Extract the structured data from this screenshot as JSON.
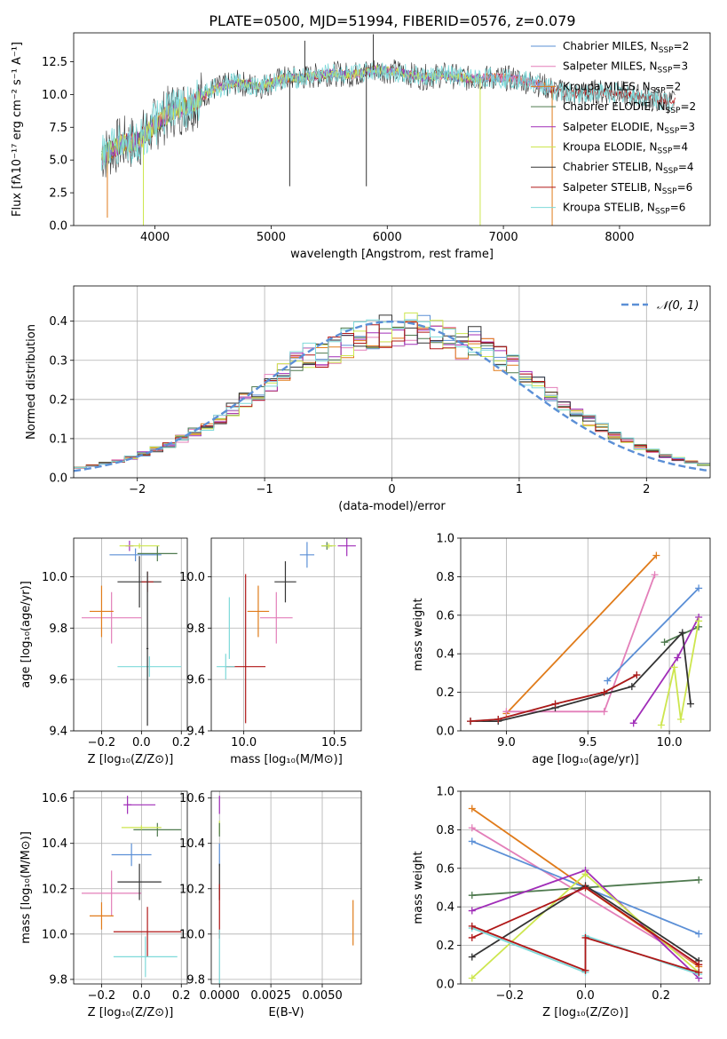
{
  "colors": {
    "Chabrier MILES": "#5b8fd6",
    "Salpeter MILES": "#e37fb9",
    "Kroupa MILES": "#e07b1a",
    "Chabrier ELODIE": "#4f7a4f",
    "Salpeter ELODIE": "#a02db8",
    "Kroupa ELODIE": "#cde64e",
    "Chabrier STELIB": "#333333",
    "Salpeter STELIB": "#b01818",
    "Kroupa STELIB": "#7ed9d9",
    "normal": "#5b8fd6"
  },
  "chart_data": [
    {
      "id": "spectrum",
      "type": "line",
      "title": "PLATE=0500, MJD=51994, FIBERID=0576, z=0.079",
      "xlabel": "wavelength [Angstrom, rest frame]",
      "ylabel": "Flux [fλ10⁻¹⁷ erg cm⁻² s⁻¹ A⁻¹]",
      "xlim": [
        3300,
        8780
      ],
      "ylim": [
        0,
        14.7
      ],
      "xticks": [
        "4000",
        "5000",
        "6000",
        "7000",
        "8000"
      ],
      "yticks": [
        "0.0",
        "2.5",
        "5.0",
        "7.5",
        "10.0",
        "12.5"
      ],
      "legend_position": "top-right",
      "legend": [
        {
          "model": "Chabrier MILES",
          "prefix": "Chabrier MILES, N",
          "nssp": "2"
        },
        {
          "model": "Salpeter MILES",
          "prefix": "Salpeter MILES, N",
          "nssp": "3"
        },
        {
          "model": "Kroupa MILES",
          "prefix": "Kroupa MILES, N",
          "nssp": "2"
        },
        {
          "model": "Chabrier ELODIE",
          "prefix": "Chabrier ELODIE, N",
          "nssp": "2"
        },
        {
          "model": "Salpeter ELODIE",
          "prefix": "Salpeter ELODIE, N",
          "nssp": "3"
        },
        {
          "model": "Kroupa ELODIE",
          "prefix": "Kroupa ELODIE, N",
          "nssp": "4"
        },
        {
          "model": "Chabrier STELIB",
          "prefix": "Chabrier STELIB, N",
          "nssp": "4"
        },
        {
          "model": "Salpeter STELIB",
          "prefix": "Salpeter STELIB, N",
          "nssp": "6"
        },
        {
          "model": "Kroupa STELIB",
          "prefix": "Kroupa STELIB, N",
          "nssp": "6"
        }
      ],
      "legend_subscript": "SSP",
      "legend_suffix": "=",
      "continuum": {
        "wavelength": [
          3550,
          3700,
          3850,
          4000,
          4150,
          4300,
          4500,
          4700,
          4900,
          5100,
          5300,
          5500,
          5700,
          5900,
          6100,
          6300,
          6500,
          6700,
          6900,
          7100,
          7300,
          7450,
          7600,
          7800,
          8000,
          8200,
          8400,
          8500
        ],
        "flux": [
          5.4,
          6.2,
          6.4,
          7.7,
          8.8,
          9.2,
          10.4,
          10.9,
          10.6,
          11.2,
          11.3,
          11.6,
          11.5,
          11.9,
          11.7,
          11.3,
          11.5,
          11.2,
          11.3,
          11.2,
          10.8,
          10.3,
          10.0,
          10.2,
          10.1,
          9.8,
          9.5,
          9.4
        ]
      },
      "spikes": [
        {
          "model": "Chabrier STELIB",
          "wavelength": 5160,
          "flux": 3.0
        },
        {
          "model": "Chabrier STELIB",
          "wavelength": 5290,
          "flux": 14.1
        },
        {
          "model": "Chabrier STELIB",
          "wavelength": 5820,
          "flux": 3.0
        },
        {
          "model": "Chabrier STELIB",
          "wavelength": 5880,
          "flux": 14.6
        },
        {
          "model": "Kroupa ELODIE",
          "wavelength": 6800,
          "flux": 0.0
        },
        {
          "model": "Kroupa MILES",
          "wavelength": 7420,
          "flux": 0.0
        },
        {
          "model": "Kroupa MILES",
          "wavelength": 3590,
          "flux": 0.6
        },
        {
          "model": "Kroupa ELODIE",
          "wavelength": 3900,
          "flux": 0.0
        }
      ]
    },
    {
      "id": "residuals",
      "type": "step",
      "xlabel": "(data-model)/error",
      "ylabel": "Normed distribution",
      "xlim": [
        -2.5,
        2.5
      ],
      "ylim": [
        0,
        0.49
      ],
      "xticks": [
        "−2",
        "−1",
        "0",
        "1",
        "2"
      ],
      "xtick_values": [
        -2,
        -1,
        0,
        1,
        2
      ],
      "yticks": [
        "0.0",
        "0.1",
        "0.2",
        "0.3",
        "0.4"
      ],
      "ytick_values": [
        0,
        0.1,
        0.2,
        0.3,
        0.4
      ],
      "bin_width": 0.1,
      "legend": "𝒩(0, 1)",
      "legend_position": "top-right",
      "series_models": [
        "Chabrier MILES",
        "Salpeter MILES",
        "Kroupa MILES",
        "Chabrier ELODIE",
        "Salpeter ELODIE",
        "Kroupa ELODIE",
        "Chabrier STELIB",
        "Salpeter STELIB",
        "Kroupa STELIB"
      ]
    },
    {
      "id": "age-vs-z",
      "type": "errorbar",
      "xlabel": "Z [log₁₀(Z/Z⊙)]",
      "ylabel": "age  [log₁₀(age/yr)]",
      "xlim": [
        -0.34,
        0.23
      ],
      "ylim": [
        9.4,
        10.15
      ],
      "xticks": [
        "−0.2",
        "0.0",
        "0.2"
      ],
      "xtick_values": [
        -0.2,
        0.0,
        0.2
      ],
      "yticks": [
        "9.4",
        "9.6",
        "9.8",
        "10.0"
      ],
      "ytick_values": [
        9.4,
        9.6,
        9.8,
        10.0
      ],
      "points": [
        {
          "model": "Chabrier MILES",
          "x": -0.03,
          "xerr": 0.13,
          "y": 10.085,
          "yerr": 0.025
        },
        {
          "model": "Salpeter MILES",
          "x": -0.15,
          "xerr": 0.15,
          "y": 9.84,
          "yerr": 0.1
        },
        {
          "model": "Kroupa MILES",
          "x": -0.2,
          "xerr": 0.06,
          "y": 9.865,
          "yerr": 0.1
        },
        {
          "model": "Chabrier ELODIE",
          "x": 0.08,
          "xerr": 0.1,
          "y": 10.09,
          "yerr": 0.03
        },
        {
          "model": "Salpeter ELODIE",
          "x": -0.06,
          "xerr": 0.02,
          "y": 10.12,
          "yerr": 0.02
        },
        {
          "model": "Kroupa ELODIE",
          "x": -0.01,
          "xerr": 0.1,
          "y": 10.12,
          "yerr": 0.01
        },
        {
          "model": "Chabrier STELIB",
          "x": -0.01,
          "xerr": 0.11,
          "y": 9.98,
          "yerr": 0.1
        },
        {
          "model": "Salpeter STELIB",
          "x": 0.03,
          "xerr": 0.03,
          "y": 9.98,
          "yerr": 0.04
        },
        {
          "model": "Kroupa STELIB",
          "x": 0.04,
          "xerr": 0.16,
          "y": 9.65,
          "yerr": 0.04
        },
        {
          "model": "Chabrier STELIB",
          "x": 0.03,
          "xerr": 0.005,
          "y": 9.72,
          "yerr": 0.3
        }
      ]
    },
    {
      "id": "age-vs-mass",
      "type": "errorbar",
      "xlabel": "mass [log₁₀(M/M⊙)]",
      "ylabel": "",
      "xlim": [
        9.82,
        10.65
      ],
      "ylim": [
        9.4,
        10.15
      ],
      "xticks": [
        "10.0",
        "10.5"
      ],
      "xtick_values": [
        10.0,
        10.5
      ],
      "yticks": [
        "9.4",
        "9.6",
        "9.8",
        "10.0"
      ],
      "ytick_values": [
        9.4,
        9.6,
        9.8,
        10.0
      ],
      "points": [
        {
          "model": "Chabrier MILES",
          "x": 10.35,
          "xerr": 0.04,
          "y": 10.085,
          "yerr": 0.05
        },
        {
          "model": "Salpeter MILES",
          "x": 10.18,
          "xerr": 0.09,
          "y": 9.84,
          "yerr": 0.1
        },
        {
          "model": "Kroupa MILES",
          "x": 10.08,
          "xerr": 0.06,
          "y": 9.865,
          "yerr": 0.1
        },
        {
          "model": "Chabrier ELODIE",
          "x": 10.46,
          "xerr": 0.03,
          "y": 10.12,
          "yerr": 0.015
        },
        {
          "model": "Salpeter ELODIE",
          "x": 10.57,
          "xerr": 0.05,
          "y": 10.12,
          "yerr": 0.04
        },
        {
          "model": "Kroupa ELODIE",
          "x": 10.47,
          "xerr": 0.04,
          "y": 10.12,
          "yerr": 0.01
        },
        {
          "model": "Chabrier STELIB",
          "x": 10.23,
          "xerr": 0.06,
          "y": 9.98,
          "yerr": 0.08
        },
        {
          "model": "Salpeter STELIB",
          "x": 10.01,
          "xerr": 0.11,
          "y": 9.65,
          "yerr": 0.0
        },
        {
          "model": "Salpeter STELIB",
          "x": 10.01,
          "xerr": 0.0,
          "y": 9.72,
          "yerr": 0.29
        },
        {
          "model": "Kroupa STELIB",
          "x": 9.9,
          "xerr": 0.05,
          "y": 9.65,
          "yerr": 0.05
        },
        {
          "model": "Kroupa STELIB",
          "x": 9.92,
          "xerr": 0.0,
          "y": 9.8,
          "yerr": 0.12
        }
      ]
    },
    {
      "id": "massweight-vs-age",
      "type": "line",
      "xlabel": "age  [log₁₀(age/yr)]",
      "ylabel": "mass weight",
      "xlim": [
        8.72,
        10.25
      ],
      "ylim": [
        0,
        1.0
      ],
      "xticks": [
        "9.0",
        "9.5",
        "10.0"
      ],
      "xtick_values": [
        9.0,
        9.5,
        10.0
      ],
      "yticks": [
        "0.0",
        "0.2",
        "0.4",
        "0.6",
        "0.8",
        "1.0"
      ],
      "ytick_values": [
        0,
        0.2,
        0.4,
        0.6,
        0.8,
        1.0
      ],
      "series": [
        {
          "model": "Kroupa MILES",
          "x": [
            9.0,
            9.92
          ],
          "y": [
            0.09,
            0.91
          ]
        },
        {
          "model": "Salpeter MILES",
          "x": [
            9.0,
            9.6,
            9.91
          ],
          "y": [
            0.1,
            0.1,
            0.81
          ]
        },
        {
          "model": "Chabrier MILES",
          "x": [
            9.62,
            10.18
          ],
          "y": [
            0.26,
            0.74
          ]
        },
        {
          "model": "Chabrier ELODIE",
          "x": [
            9.97,
            10.18
          ],
          "y": [
            0.46,
            0.54
          ]
        },
        {
          "model": "Salpeter ELODIE",
          "x": [
            9.78,
            10.05,
            10.18
          ],
          "y": [
            0.04,
            0.38,
            0.59
          ]
        },
        {
          "model": "Kroupa ELODIE",
          "x": [
            9.95,
            10.03,
            10.07,
            10.18
          ],
          "y": [
            0.03,
            0.33,
            0.06,
            0.57
          ]
        },
        {
          "model": "Chabrier STELIB",
          "x": [
            8.78,
            8.95,
            9.3,
            9.77,
            10.08,
            10.13
          ],
          "y": [
            0.05,
            0.05,
            0.12,
            0.23,
            0.51,
            0.14
          ]
        },
        {
          "model": "Kroupa STELIB",
          "x": [
            8.78,
            8.95,
            9.3,
            9.6,
            9.8
          ],
          "y": [
            0.05,
            0.06,
            0.14,
            0.2,
            0.29
          ]
        },
        {
          "model": "Salpeter STELIB",
          "x": [
            8.78,
            8.95,
            9.3,
            9.6,
            9.8
          ],
          "y": [
            0.05,
            0.06,
            0.14,
            0.2,
            0.29
          ]
        }
      ]
    },
    {
      "id": "mass-vs-z",
      "type": "errorbar",
      "xlabel": "Z [log₁₀(Z/Z⊙)]",
      "ylabel": "mass [log₁₀(M/M⊙)]",
      "xlim": [
        -0.34,
        0.23
      ],
      "ylim": [
        9.78,
        10.63
      ],
      "xticks": [
        "−0.2",
        "0.0",
        "0.2"
      ],
      "xtick_values": [
        -0.2,
        0.0,
        0.2
      ],
      "yticks": [
        "9.8",
        "10.0",
        "10.2",
        "10.4",
        "10.6"
      ],
      "ytick_values": [
        9.8,
        10.0,
        10.2,
        10.4,
        10.6
      ],
      "points": [
        {
          "model": "Chabrier MILES",
          "x": -0.05,
          "xerr": 0.1,
          "y": 10.35,
          "yerr": 0.05
        },
        {
          "model": "Salpeter MILES",
          "x": -0.15,
          "xerr": 0.15,
          "y": 10.18,
          "yerr": 0.1
        },
        {
          "model": "Kroupa MILES",
          "x": -0.2,
          "xerr": 0.06,
          "y": 10.08,
          "yerr": 0.06
        },
        {
          "model": "Chabrier ELODIE",
          "x": 0.08,
          "xerr": 0.12,
          "y": 10.46,
          "yerr": 0.03
        },
        {
          "model": "Salpeter ELODIE",
          "x": -0.07,
          "xerr": 0.02,
          "y": 10.57,
          "yerr": 0.04
        },
        {
          "model": "Salpeter ELODIE",
          "x": 0.0,
          "xerr": 0.07,
          "y": 10.57,
          "yerr": 0.0
        },
        {
          "model": "Kroupa ELODIE",
          "x": 0.0,
          "xerr": 0.1,
          "y": 10.47,
          "yerr": 0.01
        },
        {
          "model": "Chabrier STELIB",
          "x": -0.01,
          "xerr": 0.11,
          "y": 10.23,
          "yerr": 0.08
        },
        {
          "model": "Salpeter STELIB",
          "x": 0.03,
          "xerr": 0.17,
          "y": 10.01,
          "yerr": 0.11
        },
        {
          "model": "Kroupa STELIB",
          "x": 0.02,
          "xerr": 0.16,
          "y": 9.9,
          "yerr": 0.09
        }
      ]
    },
    {
      "id": "mass-vs-ebv",
      "type": "errorbar",
      "xlabel": "E(B-V)",
      "ylabel": "",
      "xlim": [
        -0.0004,
        0.0069
      ],
      "ylim": [
        9.78,
        10.63
      ],
      "xticks": [
        "0.0000",
        "0.0025",
        "0.0050"
      ],
      "xtick_values": [
        0.0,
        0.0025,
        0.005
      ],
      "yticks": [
        "9.8",
        "10.0",
        "10.2",
        "10.4",
        "10.6"
      ],
      "ytick_values": [
        9.8,
        10.0,
        10.2,
        10.4,
        10.6
      ],
      "points": [
        {
          "model": "Salpeter ELODIE",
          "x": 0.0,
          "xerr": 0.0,
          "y": 10.57,
          "yerr": 0.04
        },
        {
          "model": "Kroupa ELODIE",
          "x": 0.0,
          "xerr": 0.0,
          "y": 10.47,
          "yerr": 0.03
        },
        {
          "model": "Chabrier ELODIE",
          "x": 0.0,
          "xerr": 0.0,
          "y": 10.46,
          "yerr": 0.03
        },
        {
          "model": "Chabrier MILES",
          "x": 0.0,
          "xerr": 0.0,
          "y": 10.35,
          "yerr": 0.05
        },
        {
          "model": "Chabrier STELIB",
          "x": 0.0,
          "xerr": 0.0,
          "y": 10.23,
          "yerr": 0.08
        },
        {
          "model": "Salpeter STELIB",
          "x": 0.0,
          "xerr": 0.0,
          "y": 10.1,
          "yerr": 0.12
        },
        {
          "model": "Kroupa STELIB",
          "x": 0.0,
          "xerr": 0.0,
          "y": 9.9,
          "yerr": 0.12
        },
        {
          "model": "Kroupa MILES",
          "x": 0.0065,
          "xerr": 0.0,
          "y": 10.05,
          "yerr": 0.1
        }
      ]
    },
    {
      "id": "massweight-vs-z",
      "type": "line",
      "xlabel": "Z [log₁₀(Z/Z⊙)]",
      "ylabel": "mass weight",
      "xlim": [
        -0.33,
        0.33
      ],
      "ylim": [
        0,
        1.0
      ],
      "xticks": [
        "−0.2",
        "0.0",
        "0.2"
      ],
      "xtick_values": [
        -0.2,
        0.0,
        0.2
      ],
      "yticks": [
        "0.0",
        "0.2",
        "0.4",
        "0.6",
        "0.8",
        "1.0"
      ],
      "ytick_values": [
        0,
        0.2,
        0.4,
        0.6,
        0.8,
        1.0
      ],
      "series": [
        {
          "model": "Kroupa MILES",
          "x": [
            -0.3,
            0.3
          ],
          "y": [
            0.91,
            0.09
          ]
        },
        {
          "model": "Salpeter MILES",
          "x": [
            -0.3,
            0.3
          ],
          "y": [
            0.81,
            0.1
          ]
        },
        {
          "model": "Chabrier MILES",
          "x": [
            -0.3,
            0.3
          ],
          "y": [
            0.74,
            0.26
          ]
        },
        {
          "model": "Chabrier ELODIE",
          "x": [
            -0.3,
            0.3
          ],
          "y": [
            0.46,
            0.54
          ]
        },
        {
          "model": "Salpeter ELODIE",
          "x": [
            -0.3,
            0.0,
            0.3
          ],
          "y": [
            0.38,
            0.59,
            0.03
          ]
        },
        {
          "model": "Kroupa ELODIE",
          "x": [
            -0.3,
            0.0,
            0.3
          ],
          "y": [
            0.03,
            0.57,
            0.06
          ]
        },
        {
          "model": "Chabrier STELIB",
          "x": [
            -0.3,
            0.0,
            0.3
          ],
          "y": [
            0.14,
            0.51,
            0.12
          ]
        },
        {
          "model": "Salpeter STELIB",
          "x": [
            -0.3,
            0.0,
            0.3
          ],
          "y": [
            0.24,
            0.5,
            0.1
          ]
        },
        {
          "model": "Kroupa STELIB",
          "x": [
            -0.3,
            0.0,
            0.0,
            0.3
          ],
          "y": [
            0.29,
            0.06,
            0.25,
            0.05
          ]
        },
        {
          "model": "Salpeter STELIB",
          "x": [
            -0.3,
            0.0,
            0.0,
            0.3
          ],
          "y": [
            0.3,
            0.07,
            0.24,
            0.06
          ]
        }
      ]
    }
  ]
}
